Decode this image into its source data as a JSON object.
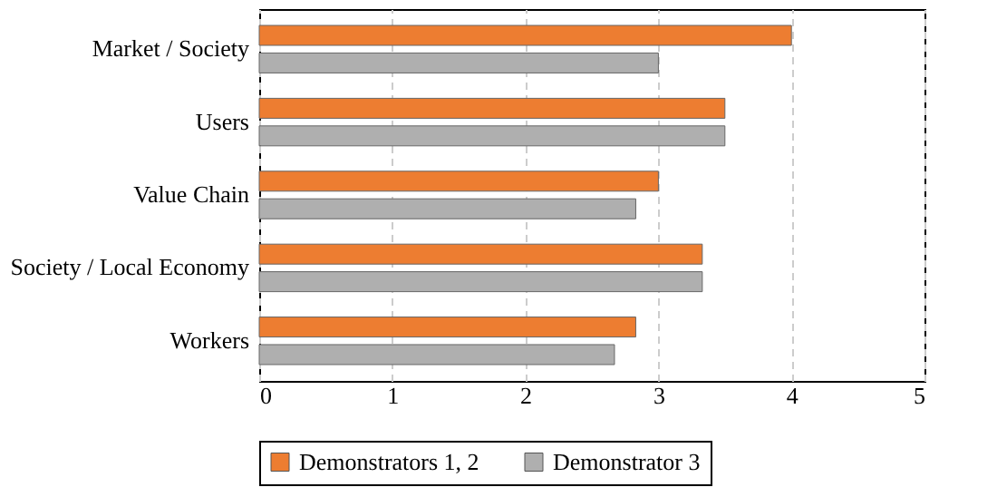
{
  "chart_data": {
    "type": "bar",
    "orientation": "horizontal",
    "categories": [
      "Market / Society",
      "Users",
      "Value Chain",
      "Society / Local Economy",
      "Workers"
    ],
    "series": [
      {
        "name": "Demonstrators  1, 2",
        "color": "#ed7d31",
        "values": [
          4,
          3.5,
          3,
          3.33,
          2.83
        ]
      },
      {
        "name": "Demonstrator 3",
        "color": "#afafaf",
        "values": [
          3,
          3.5,
          2.83,
          3.33,
          2.67
        ]
      }
    ],
    "xlim": [
      0,
      5
    ],
    "xticks": [
      0,
      1,
      2,
      3,
      4,
      5
    ],
    "grid": "x",
    "legend": "bottom"
  }
}
